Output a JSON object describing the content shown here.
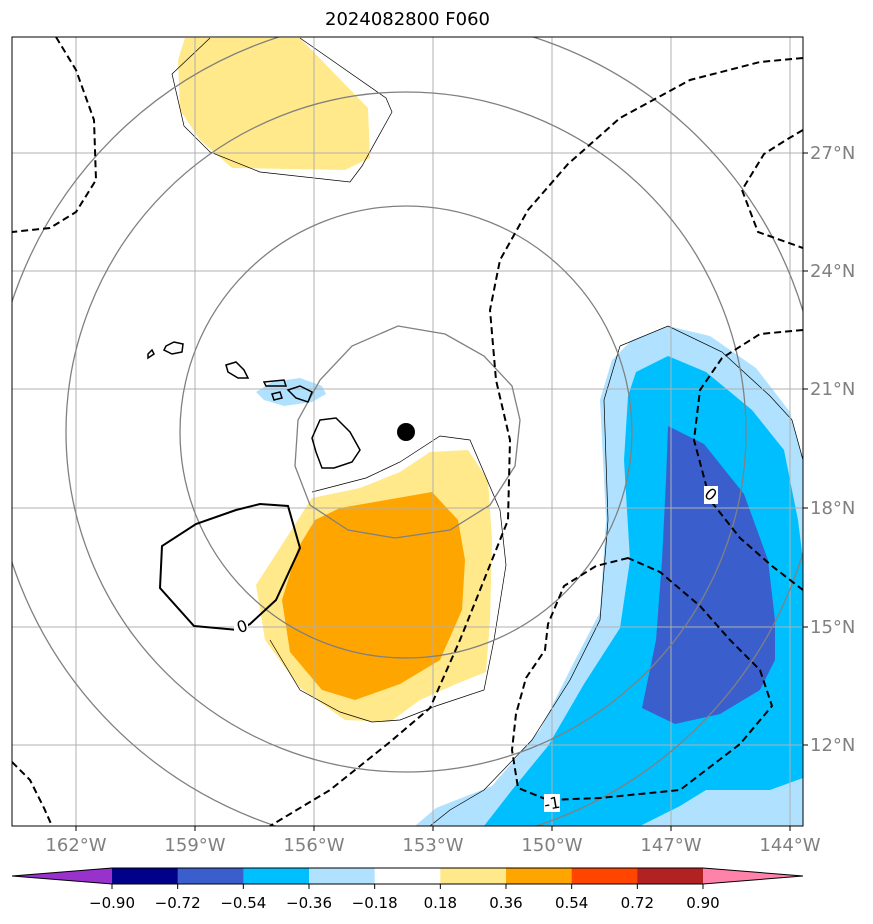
{
  "title": "2024082800 F060",
  "lon_labels": [
    "162°W",
    "159°W",
    "156°W",
    "153°W",
    "150°W",
    "147°W",
    "144°W"
  ],
  "lat_labels": [
    "27°N",
    "24°N",
    "21°N",
    "18°N",
    "15°N",
    "12°N"
  ],
  "contour_labels": [
    "0",
    "0",
    "-1"
  ],
  "colorbar": {
    "tick_labels": [
      "−0.90",
      "−0.72",
      "−0.54",
      "−0.36",
      "−0.18",
      "0.18",
      "0.36",
      "0.54",
      "0.72",
      "0.90"
    ],
    "colors": [
      "#9932cc",
      "#00008b",
      "#3a5fcd",
      "#00bfff",
      "#b0e2ff",
      "#ffffff",
      "#ffe98a",
      "#ffa500",
      "#ff4500",
      "#b22222",
      "#ff82ab"
    ]
  },
  "map": {
    "extent_lon": [
      -163.6,
      -143.7
    ],
    "extent_lat": [
      10.0,
      29.9
    ],
    "center_marker": {
      "lon": -153.6,
      "lat": 19.9
    }
  }
}
